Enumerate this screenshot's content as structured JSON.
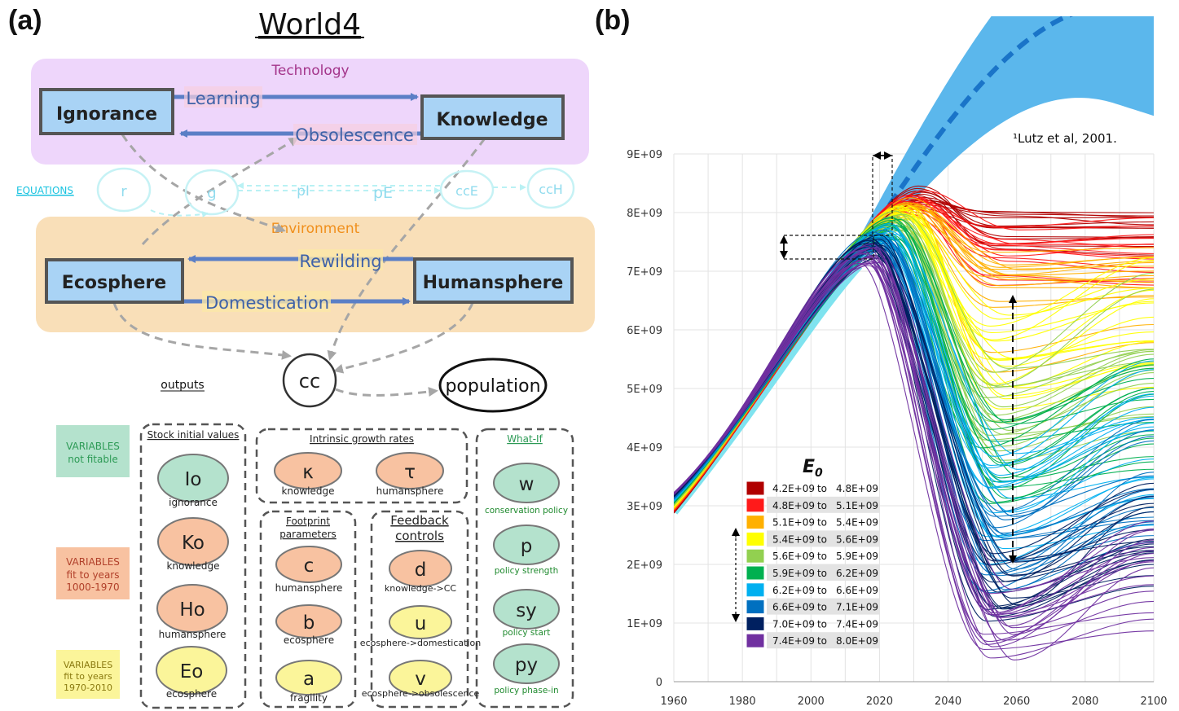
{
  "panel_a": {
    "label": "(a)",
    "title": "World4",
    "technology": {
      "label": "Technology",
      "stock_left": "Ignorance",
      "stock_right": "Knowledge",
      "flow_top": "Learning",
      "flow_bottom": "Obsolescence"
    },
    "equations": {
      "link": "EQUATIONS",
      "circles": [
        "r",
        "g",
        "pI",
        "pE",
        "ccE",
        "ccH"
      ]
    },
    "environment": {
      "label": "Environment",
      "stock_left": "Ecosphere",
      "stock_right": "Humansphere",
      "flow_top": "Rewilding",
      "flow_bottom": "Domestication"
    },
    "outputs": {
      "label": "outputs",
      "cc": "cc",
      "population": "population"
    },
    "legend_boxes": {
      "not_fitable": [
        "VARIABLES",
        "not fitable"
      ],
      "fit_early": [
        "VARIABLES",
        "fit to years",
        "1000-1970"
      ],
      "fit_late": [
        "VARIABLES",
        "fit to years",
        "1970-2010"
      ]
    },
    "groups": {
      "stock_initial": {
        "title": "Stock initial values",
        "items": [
          {
            "sym": "Io",
            "cap": "ignorance"
          },
          {
            "sym": "Ko",
            "cap": "knowledge"
          },
          {
            "sym": "Ho",
            "cap": "humansphere"
          },
          {
            "sym": "Eo",
            "cap": "ecosphere"
          }
        ]
      },
      "intrinsic": {
        "title": "Intrinsic growth rates",
        "items": [
          {
            "sym": "κ",
            "cap": "knowledge"
          },
          {
            "sym": "τ",
            "cap": "humansphere"
          }
        ]
      },
      "footprint": {
        "title_lines": [
          "Footprint",
          "parameters"
        ],
        "items": [
          {
            "sym": "c",
            "cap": "humansphere"
          },
          {
            "sym": "b",
            "cap": "ecosphere"
          },
          {
            "sym": "a",
            "cap": "fragility"
          }
        ]
      },
      "feedback": {
        "title_lines": [
          "Feedback",
          "controls"
        ],
        "items": [
          {
            "sym": "d",
            "cap": "knowledge->CC"
          },
          {
            "sym": "u",
            "cap": "ecosphere->domestication"
          },
          {
            "sym": "v",
            "cap": "ecosphere->obsolescence"
          }
        ]
      },
      "whatif": {
        "title": "What-If",
        "items": [
          {
            "sym": "w",
            "cap": "conservation policy"
          },
          {
            "sym": "p",
            "cap": "policy strength"
          },
          {
            "sym": "sy",
            "cap": "policy start"
          },
          {
            "sym": "py",
            "cap": "policy phase-in"
          }
        ]
      }
    },
    "colors": {
      "tech_bg": "#eed6fb",
      "env_bg": "#f9dfb8",
      "stock": "#a9d3f5",
      "teal": "#b4e2cd",
      "salmon": "#f8c2a1",
      "yellow": "#fbf59a"
    }
  },
  "panel_b": {
    "label": "(b)",
    "citation": "¹Lutz et al, 2001.",
    "legend_title": "E",
    "legend_title_sub": "0",
    "legend_entries": [
      {
        "from": "4.2E+09",
        "to": "4.8E+09",
        "color": "#b00000"
      },
      {
        "from": "4.8E+09",
        "to": "5.1E+09",
        "color": "#ff1a1a"
      },
      {
        "from": "5.1E+09",
        "to": "5.4E+09",
        "color": "#ffb000"
      },
      {
        "from": "5.4E+09",
        "to": "5.6E+09",
        "color": "#ffff00"
      },
      {
        "from": "5.6E+09",
        "to": "5.9E+09",
        "color": "#92d050"
      },
      {
        "from": "5.9E+09",
        "to": "6.2E+09",
        "color": "#00b050"
      },
      {
        "from": "6.2E+09",
        "to": "6.6E+09",
        "color": "#00b0f0"
      },
      {
        "from": "6.6E+09",
        "to": "7.1E+09",
        "color": "#0070c0"
      },
      {
        "from": "7.0E+09",
        "to": "7.4E+09",
        "color": "#002060"
      },
      {
        "from": "7.4E+09",
        "to": "8.0E+09",
        "color": "#7030a0"
      }
    ],
    "legend_to": "to"
  },
  "chart_data": {
    "type": "line",
    "x_ticks": [
      "1960",
      "1980",
      "2000",
      "2020",
      "2040",
      "2060",
      "2080",
      "2100"
    ],
    "y_ticks": [
      "0",
      "1E+09",
      "2E+09",
      "3E+09",
      "4E+09",
      "5E+09",
      "6E+09",
      "7E+09",
      "8E+09",
      "9E+09"
    ],
    "xlim": [
      1960,
      2100
    ],
    "ylim": [
      0,
      9000000000
    ],
    "grid": true,
    "legend_placement": "bottom-left",
    "series": [
      {
        "color": "#b00000",
        "values": [
          [
            1960,
            3050000000.0
          ],
          [
            2020,
            7600000000.0
          ],
          [
            2040,
            8200000000.0
          ],
          [
            2100,
            7600000000.0
          ]
        ]
      },
      {
        "color": "#ff1a1a",
        "values": [
          [
            1960,
            3050000000.0
          ],
          [
            2020,
            7500000000.0
          ],
          [
            2045,
            7900000000.0
          ],
          [
            2100,
            7100000000.0
          ]
        ]
      },
      {
        "color": "#ffb000",
        "values": [
          [
            1960,
            3050000000.0
          ],
          [
            2020,
            7500000000.0
          ],
          [
            2045,
            7600000000.0
          ],
          [
            2100,
            6500000000.0
          ]
        ]
      },
      {
        "color": "#ffff00",
        "values": [
          [
            1960,
            3050000000.0
          ],
          [
            2020,
            7500000000.0
          ],
          [
            2045,
            7400000000.0
          ],
          [
            2100,
            6700000000.0
          ]
        ]
      },
      {
        "color": "#92d050",
        "values": [
          [
            1960,
            3050000000.0
          ],
          [
            2020,
            7400000000.0
          ],
          [
            2045,
            6400000000.0
          ],
          [
            2100,
            5600000000.0
          ]
        ]
      },
      {
        "color": "#00b050",
        "values": [
          [
            1960,
            3050000000.0
          ],
          [
            2020,
            7400000000.0
          ],
          [
            2050,
            4800000000.0
          ],
          [
            2100,
            5000000000.0
          ]
        ]
      },
      {
        "color": "#00b0f0",
        "values": [
          [
            1960,
            3050000000.0
          ],
          [
            2020,
            7400000000.0
          ],
          [
            2055,
            3000000000.0
          ],
          [
            2100,
            4400000000.0
          ]
        ]
      },
      {
        "color": "#0070c0",
        "values": [
          [
            1960,
            3050000000.0
          ],
          [
            2020,
            7300000000.0
          ],
          [
            2055,
            2300000000.0
          ],
          [
            2100,
            3300000000.0
          ]
        ]
      },
      {
        "color": "#002060",
        "values": [
          [
            1960,
            3050000000.0
          ],
          [
            2015,
            7200000000.0
          ],
          [
            2055,
            500000000.0
          ],
          [
            2100,
            1000000000.0
          ]
        ]
      },
      {
        "color": "#7030a0",
        "values": [
          [
            1960,
            3050000000.0
          ],
          [
            2015,
            7100000000.0
          ],
          [
            2060,
            100000000.0
          ],
          [
            2100,
            500000000.0
          ]
        ]
      }
    ],
    "projection": {
      "color": "#1a74c8",
      "band_color": "#5bb7ec",
      "values": [
        [
          2015,
          7300000000.0
        ],
        [
          2040,
          9800000000.0
        ],
        [
          2080,
          11100000000.0
        ],
        [
          2100,
          11000000000.0
        ]
      ]
    },
    "observed": {
      "color": "#7fe3ef",
      "values": [
        [
          1960,
          2900000000.0
        ],
        [
          1990,
          5300000000.0
        ],
        [
          2015,
          7200000000.0
        ]
      ]
    }
  }
}
